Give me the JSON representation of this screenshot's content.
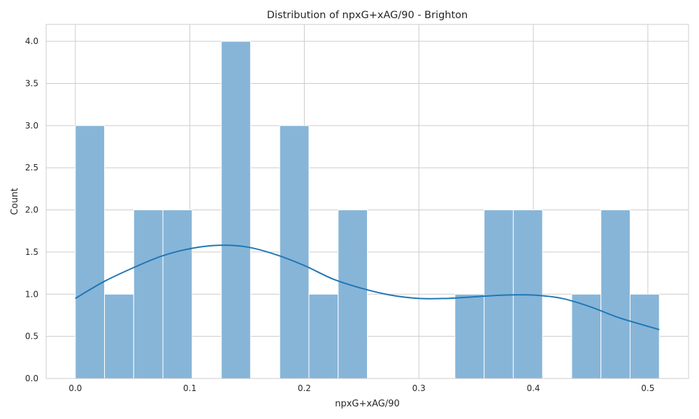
{
  "chart_data": {
    "type": "bar",
    "chart_kind": "histogram",
    "title": "Distribution of npxG+xAG/90 - Brighton",
    "xlabel": "npxG+xAG/90",
    "ylabel": "Count",
    "xlim": [
      -0.0255,
      0.5355
    ],
    "ylim": [
      0,
      4.2
    ],
    "x_ticks": [
      0.0,
      0.1,
      0.2,
      0.3,
      0.4,
      0.5
    ],
    "x_tick_labels": [
      "0.0",
      "0.1",
      "0.2",
      "0.3",
      "0.4",
      "0.5"
    ],
    "y_ticks": [
      0.0,
      0.5,
      1.0,
      1.5,
      2.0,
      2.5,
      3.0,
      3.5,
      4.0
    ],
    "y_tick_labels": [
      "0.0",
      "0.5",
      "1.0",
      "1.5",
      "2.0",
      "2.5",
      "3.0",
      "3.5",
      "4.0"
    ],
    "grid": true,
    "bin_edges": [
      0.0,
      0.0255,
      0.051,
      0.0765,
      0.102,
      0.1275,
      0.153,
      0.1785,
      0.204,
      0.2295,
      0.255,
      0.2805,
      0.306,
      0.3315,
      0.357,
      0.3825,
      0.408,
      0.4335,
      0.459,
      0.4845,
      0.51
    ],
    "counts": [
      3,
      1,
      2,
      2,
      0,
      4,
      0,
      3,
      1,
      2,
      0,
      0,
      0,
      1,
      2,
      2,
      0,
      1,
      2,
      1
    ],
    "kde": {
      "x": [
        0.0,
        0.025,
        0.05,
        0.075,
        0.1,
        0.125,
        0.15,
        0.175,
        0.2,
        0.225,
        0.25,
        0.275,
        0.3,
        0.325,
        0.35,
        0.375,
        0.4,
        0.425,
        0.45,
        0.475,
        0.51
      ],
      "y": [
        0.95,
        1.15,
        1.31,
        1.45,
        1.54,
        1.58,
        1.56,
        1.47,
        1.34,
        1.18,
        1.07,
        0.99,
        0.95,
        0.95,
        0.97,
        0.99,
        0.99,
        0.95,
        0.85,
        0.72,
        0.58
      ]
    },
    "colors": {
      "bar_fill": "#87b5d8",
      "bar_stroke": "#ffffff",
      "kde_line": "#1f77b4",
      "grid": "#cccccc",
      "axes_edge": "#cccccc",
      "text": "#262626"
    }
  }
}
